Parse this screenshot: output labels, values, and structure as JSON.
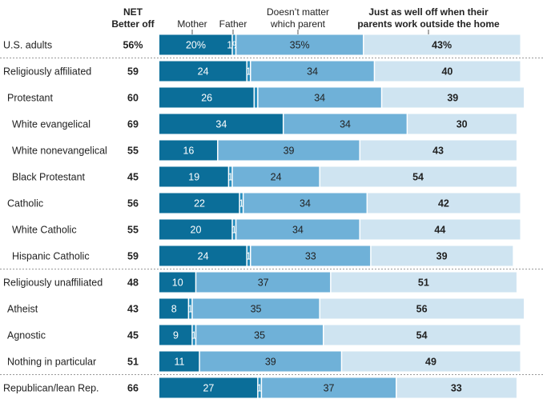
{
  "chart_data": {
    "type": "bar",
    "stacked": true,
    "orientation": "horizontal",
    "headers": {
      "net_line1": "NET",
      "net_line2": "Better off",
      "mother": "Mother",
      "father": "Father",
      "no_matter_line1": "Doesn’t matter",
      "no_matter_line2": "which parent",
      "well_off_line1": "Just as well off when their",
      "well_off_line2": "parents work outside the home"
    },
    "categories": [
      "U.S. adults",
      "Religiously affiliated",
      "Protestant",
      "White evangelical",
      "White nonevangelical",
      "Black Protestant",
      "Catholic",
      "White Catholic",
      "Hispanic Catholic",
      "Religiously unaffiliated",
      "Atheist",
      "Agnostic",
      "Nothing in particular",
      "Republican/lean Rep."
    ],
    "indent": [
      0,
      0,
      1,
      2,
      2,
      2,
      1,
      2,
      2,
      0,
      1,
      1,
      1,
      0
    ],
    "net_labels": [
      "56%",
      "59",
      "60",
      "69",
      "55",
      "45",
      "56",
      "55",
      "59",
      "48",
      "43",
      "45",
      "51",
      "66"
    ],
    "series": [
      {
        "name": "Mother",
        "color": "#0b6e99",
        "values": [
          20,
          24,
          26,
          34,
          16,
          19,
          22,
          20,
          24,
          10,
          8,
          9,
          11,
          27
        ],
        "labels": [
          "20%",
          "24",
          "26",
          "34",
          "16",
          "19",
          "22",
          "20",
          "24",
          "10",
          "8",
          "9",
          "11",
          "27"
        ]
      },
      {
        "name": "Father",
        "color": "#2a8fbf",
        "values": [
          1,
          1,
          1,
          0,
          0,
          1,
          1,
          1,
          1,
          0,
          1,
          1,
          0,
          1
        ],
        "labels": [
          "1%",
          "1",
          "",
          "",
          "",
          "1",
          "1",
          "1",
          "1",
          "",
          "1",
          "1",
          "",
          "1"
        ]
      },
      {
        "name": "Doesn’t matter which parent",
        "color": "#6fb1d8",
        "values": [
          35,
          34,
          34,
          34,
          39,
          24,
          34,
          34,
          33,
          37,
          35,
          35,
          39,
          37
        ],
        "labels": [
          "35%",
          "34",
          "34",
          "34",
          "39",
          "24",
          "34",
          "34",
          "33",
          "37",
          "35",
          "35",
          "39",
          "37"
        ]
      },
      {
        "name": "Just as well off when their parents work outside the home",
        "color": "#cfe4f1",
        "values": [
          43,
          40,
          39,
          30,
          43,
          54,
          42,
          44,
          39,
          51,
          56,
          54,
          49,
          33
        ],
        "labels": [
          "43%",
          "40",
          "39",
          "30",
          "43",
          "54",
          "42",
          "44",
          "39",
          "51",
          "56",
          "54",
          "49",
          "33"
        ]
      }
    ],
    "separators_after": [
      0,
      8,
      12
    ]
  }
}
